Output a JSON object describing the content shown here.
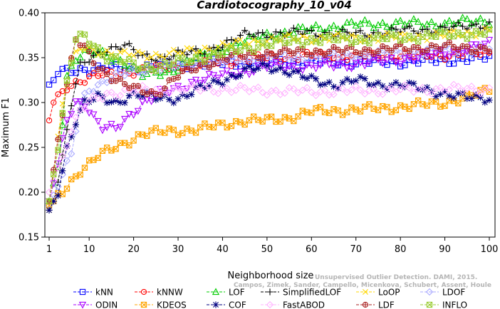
{
  "chart_data": {
    "type": "line",
    "title": "Cardiotocography_10_v04",
    "xlabel": "Neighborhood size",
    "ylabel": "Maximum F1",
    "xlim": [
      1,
      100
    ],
    "ylim": [
      0.15,
      0.4
    ],
    "xticks": [
      1,
      10,
      20,
      30,
      40,
      50,
      60,
      70,
      80,
      90,
      100
    ],
    "yticks": [
      0.15,
      0.2,
      0.25,
      0.3,
      0.35,
      0.4
    ],
    "xtick_labels": [
      "1",
      "10",
      "20",
      "30",
      "40",
      "50",
      "60",
      "70",
      "80",
      "90",
      "100"
    ],
    "ytick_labels": [
      "0.15",
      "0.20",
      "0.25",
      "0.30",
      "0.35",
      "0.40"
    ],
    "grid": false,
    "legend_position": "bottom",
    "watermark": [
      "Campos, Zimek, Sander, Campello, Micenkova, Schubert, Assent, Houle",
      "Unsupervised Outlier Detection. DAMI, 2015."
    ],
    "series": [
      {
        "name": "kNN",
        "color": "#0000ff",
        "marker": "square",
        "anchors": [
          [
            1,
            0.32
          ],
          [
            2,
            0.325
          ],
          [
            3,
            0.333
          ],
          [
            5,
            0.335
          ],
          [
            8,
            0.337
          ],
          [
            15,
            0.338
          ],
          [
            25,
            0.34
          ],
          [
            35,
            0.343
          ],
          [
            50,
            0.345
          ],
          [
            60,
            0.345
          ],
          [
            70,
            0.345
          ],
          [
            80,
            0.345
          ],
          [
            90,
            0.347
          ],
          [
            100,
            0.35
          ]
        ]
      },
      {
        "name": "kNNW",
        "color": "#ff0000",
        "marker": "circle",
        "anchors": [
          [
            1,
            0.28
          ],
          [
            2,
            0.3
          ],
          [
            3,
            0.305
          ],
          [
            5,
            0.318
          ],
          [
            8,
            0.325
          ],
          [
            12,
            0.33
          ],
          [
            20,
            0.335
          ],
          [
            30,
            0.34
          ],
          [
            40,
            0.345
          ],
          [
            50,
            0.35
          ],
          [
            60,
            0.352
          ],
          [
            70,
            0.352
          ],
          [
            80,
            0.352
          ],
          [
            90,
            0.353
          ],
          [
            100,
            0.355
          ]
        ]
      },
      {
        "name": "LOF",
        "color": "#00cc00",
        "marker": "triangle",
        "anchors": [
          [
            1,
            0.19
          ],
          [
            3,
            0.23
          ],
          [
            5,
            0.33
          ],
          [
            7,
            0.35
          ],
          [
            9,
            0.355
          ],
          [
            12,
            0.355
          ],
          [
            18,
            0.345
          ],
          [
            22,
            0.33
          ],
          [
            28,
            0.335
          ],
          [
            32,
            0.345
          ],
          [
            40,
            0.36
          ],
          [
            50,
            0.375
          ],
          [
            60,
            0.382
          ],
          [
            70,
            0.387
          ],
          [
            80,
            0.388
          ],
          [
            90,
            0.388
          ],
          [
            100,
            0.392
          ]
        ]
      },
      {
        "name": "SimplifiedLOF",
        "color": "#000000",
        "marker": "plus",
        "anchors": [
          [
            1,
            0.18
          ],
          [
            2,
            0.19
          ],
          [
            4,
            0.24
          ],
          [
            6,
            0.3
          ],
          [
            8,
            0.34
          ],
          [
            11,
            0.35
          ],
          [
            14,
            0.36
          ],
          [
            18,
            0.365
          ],
          [
            22,
            0.35
          ],
          [
            26,
            0.35
          ],
          [
            30,
            0.355
          ],
          [
            35,
            0.355
          ],
          [
            40,
            0.365
          ],
          [
            45,
            0.375
          ],
          [
            50,
            0.377
          ],
          [
            60,
            0.378
          ],
          [
            70,
            0.376
          ],
          [
            80,
            0.38
          ],
          [
            90,
            0.382
          ],
          [
            100,
            0.388
          ]
        ]
      },
      {
        "name": "LoOP",
        "color": "#ffd700",
        "marker": "cross",
        "anchors": [
          [
            1,
            0.18
          ],
          [
            4,
            0.3
          ],
          [
            6,
            0.345
          ],
          [
            8,
            0.36
          ],
          [
            12,
            0.358
          ],
          [
            18,
            0.353
          ],
          [
            25,
            0.353
          ],
          [
            30,
            0.355
          ],
          [
            40,
            0.363
          ],
          [
            50,
            0.37
          ],
          [
            60,
            0.372
          ],
          [
            70,
            0.372
          ],
          [
            80,
            0.373
          ],
          [
            90,
            0.375
          ],
          [
            100,
            0.38
          ]
        ]
      },
      {
        "name": "LDOF",
        "color": "#aaaaff",
        "marker": "diamond",
        "anchors": [
          [
            1,
            0.185
          ],
          [
            4,
            0.22
          ],
          [
            6,
            0.24
          ],
          [
            8,
            0.3
          ],
          [
            10,
            0.315
          ],
          [
            14,
            0.325
          ],
          [
            20,
            0.335
          ],
          [
            30,
            0.34
          ],
          [
            40,
            0.345
          ],
          [
            50,
            0.35
          ],
          [
            60,
            0.35
          ],
          [
            70,
            0.353
          ],
          [
            80,
            0.355
          ],
          [
            90,
            0.358
          ],
          [
            100,
            0.36
          ]
        ]
      },
      {
        "name": "ODIN",
        "color": "#aa00ff",
        "marker": "triangle-down",
        "anchors": [
          [
            1,
            0.19
          ],
          [
            3,
            0.23
          ],
          [
            5,
            0.28
          ],
          [
            7,
            0.3
          ],
          [
            9,
            0.3
          ],
          [
            11,
            0.285
          ],
          [
            13,
            0.272
          ],
          [
            16,
            0.27
          ],
          [
            19,
            0.285
          ],
          [
            22,
            0.3
          ],
          [
            26,
            0.31
          ],
          [
            30,
            0.315
          ],
          [
            34,
            0.325
          ],
          [
            40,
            0.33
          ],
          [
            45,
            0.335
          ],
          [
            50,
            0.34
          ],
          [
            60,
            0.34
          ],
          [
            70,
            0.343
          ],
          [
            80,
            0.348
          ],
          [
            90,
            0.355
          ],
          [
            100,
            0.365
          ]
        ]
      },
      {
        "name": "KDEOS",
        "color": "#ffa500",
        "marker": "square-x",
        "anchors": [
          [
            1,
            0.185
          ],
          [
            4,
            0.2
          ],
          [
            8,
            0.225
          ],
          [
            12,
            0.24
          ],
          [
            18,
            0.255
          ],
          [
            22,
            0.265
          ],
          [
            28,
            0.268
          ],
          [
            34,
            0.27
          ],
          [
            40,
            0.275
          ],
          [
            45,
            0.28
          ],
          [
            50,
            0.28
          ],
          [
            55,
            0.283
          ],
          [
            60,
            0.29
          ],
          [
            70,
            0.292
          ],
          [
            80,
            0.295
          ],
          [
            90,
            0.3
          ],
          [
            95,
            0.305
          ],
          [
            100,
            0.315
          ]
        ]
      },
      {
        "name": "COF",
        "color": "#000080",
        "marker": "asterisk",
        "anchors": [
          [
            1,
            0.18
          ],
          [
            3,
            0.2
          ],
          [
            5,
            0.25
          ],
          [
            7,
            0.28
          ],
          [
            9,
            0.3
          ],
          [
            12,
            0.305
          ],
          [
            16,
            0.3
          ],
          [
            20,
            0.31
          ],
          [
            25,
            0.305
          ],
          [
            30,
            0.305
          ],
          [
            35,
            0.315
          ],
          [
            40,
            0.325
          ],
          [
            45,
            0.335
          ],
          [
            50,
            0.34
          ],
          [
            55,
            0.335
          ],
          [
            60,
            0.325
          ],
          [
            65,
            0.32
          ],
          [
            70,
            0.325
          ],
          [
            75,
            0.32
          ],
          [
            80,
            0.32
          ],
          [
            85,
            0.315
          ],
          [
            90,
            0.31
          ],
          [
            95,
            0.305
          ],
          [
            100,
            0.305
          ]
        ]
      },
      {
        "name": "FastABOD",
        "color": "#ffb3ff",
        "marker": "diamond",
        "anchors": [
          [
            1,
            0.2
          ],
          [
            4,
            0.24
          ],
          [
            6,
            0.27
          ],
          [
            8,
            0.29
          ],
          [
            10,
            0.3
          ],
          [
            14,
            0.31
          ],
          [
            20,
            0.313
          ],
          [
            30,
            0.315
          ],
          [
            40,
            0.315
          ],
          [
            50,
            0.313
          ],
          [
            60,
            0.312
          ],
          [
            70,
            0.313
          ],
          [
            80,
            0.314
          ],
          [
            90,
            0.315
          ],
          [
            100,
            0.315
          ]
        ]
      },
      {
        "name": "LDF",
        "color": "#aa2222",
        "marker": "circle-plus",
        "anchors": [
          [
            1,
            0.19
          ],
          [
            3,
            0.26
          ],
          [
            5,
            0.32
          ],
          [
            7,
            0.37
          ],
          [
            9,
            0.36
          ],
          [
            12,
            0.34
          ],
          [
            16,
            0.325
          ],
          [
            20,
            0.315
          ],
          [
            25,
            0.31
          ],
          [
            30,
            0.33
          ],
          [
            35,
            0.34
          ],
          [
            40,
            0.35
          ],
          [
            50,
            0.355
          ],
          [
            60,
            0.357
          ],
          [
            70,
            0.358
          ],
          [
            80,
            0.36
          ],
          [
            90,
            0.362
          ],
          [
            100,
            0.36
          ]
        ]
      },
      {
        "name": "INFLO",
        "color": "#99cc33",
        "marker": "square-x",
        "anchors": [
          [
            1,
            0.19
          ],
          [
            3,
            0.25
          ],
          [
            5,
            0.32
          ],
          [
            7,
            0.37
          ],
          [
            9,
            0.375
          ],
          [
            11,
            0.365
          ],
          [
            14,
            0.35
          ],
          [
            18,
            0.345
          ],
          [
            22,
            0.34
          ],
          [
            26,
            0.34
          ],
          [
            30,
            0.345
          ],
          [
            35,
            0.35
          ],
          [
            40,
            0.355
          ],
          [
            50,
            0.365
          ],
          [
            60,
            0.37
          ],
          [
            70,
            0.37
          ],
          [
            80,
            0.372
          ],
          [
            90,
            0.375
          ],
          [
            100,
            0.378
          ]
        ]
      }
    ]
  }
}
